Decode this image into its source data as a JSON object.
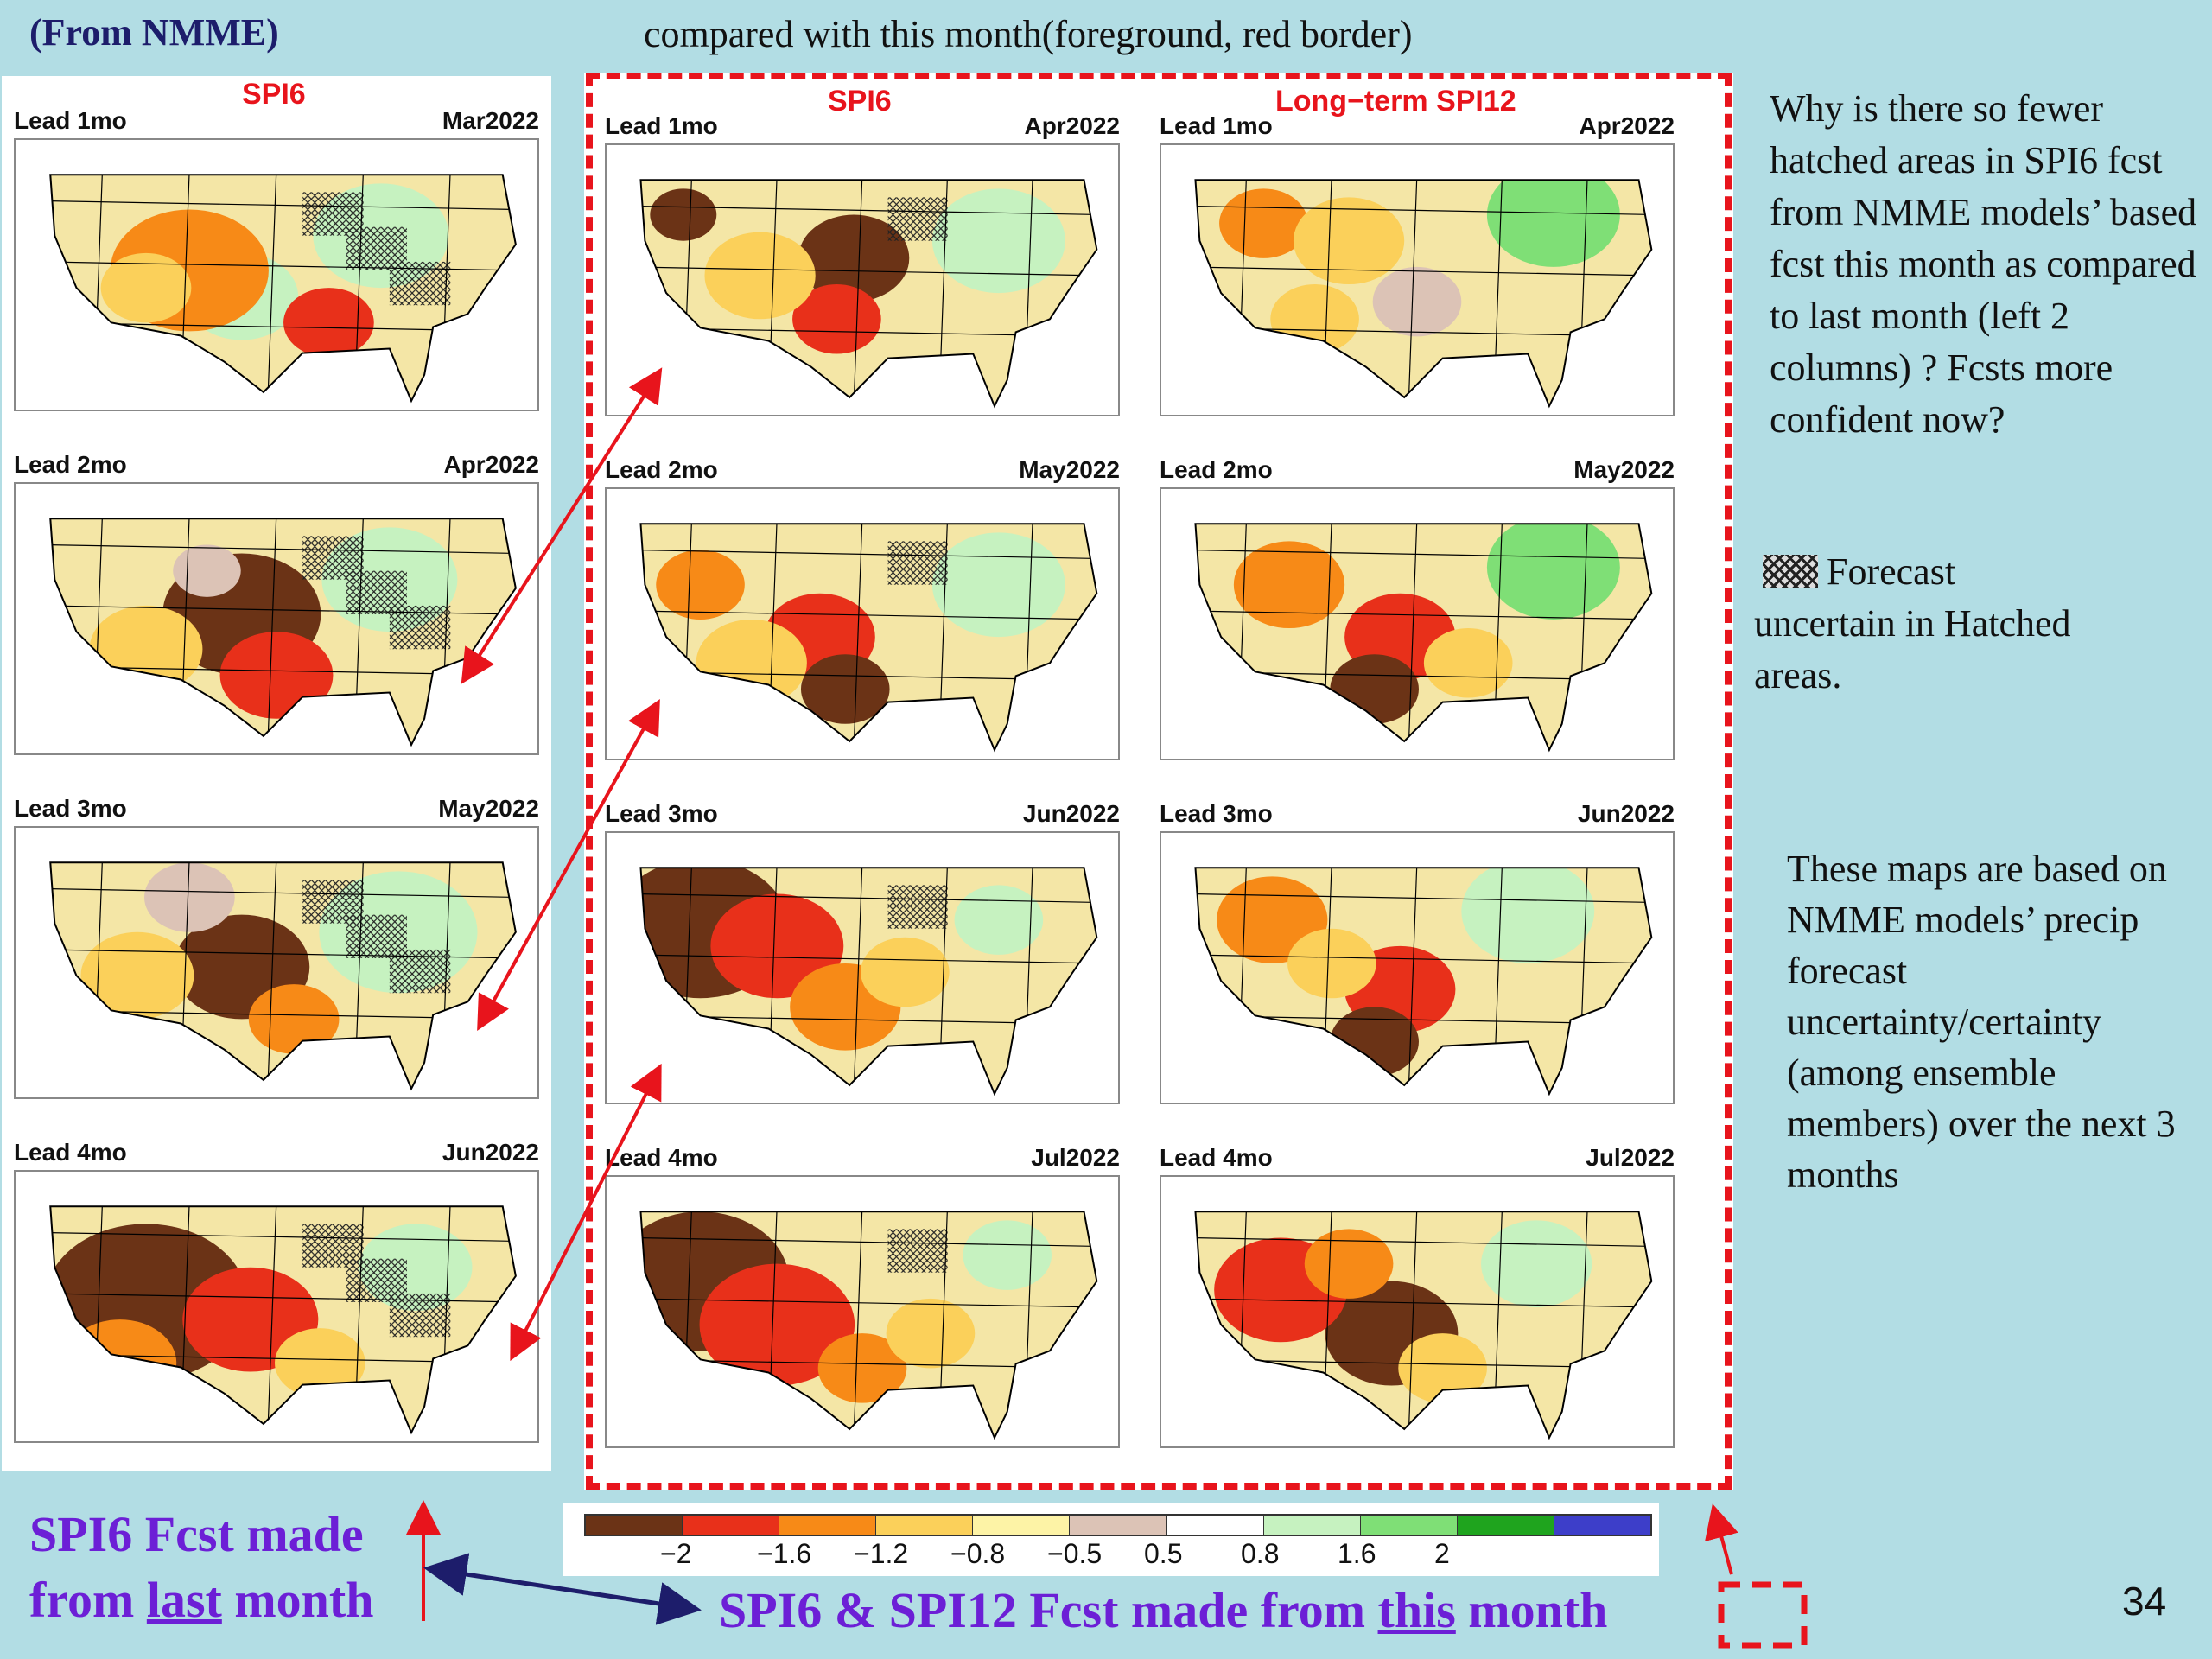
{
  "header": {
    "source_label": "(From NMME)",
    "compare_note": "compared with this month(foreground, red border)"
  },
  "left_column": {
    "title": "SPI6",
    "maps": [
      {
        "lead": "Lead 1mo",
        "date": "Mar2022"
      },
      {
        "lead": "Lead 2mo",
        "date": "Apr2022"
      },
      {
        "lead": "Lead 3mo",
        "date": "May2022"
      },
      {
        "lead": "Lead 4mo",
        "date": "Jun2022"
      }
    ]
  },
  "middle_column": {
    "title": "SPI6",
    "maps": [
      {
        "lead": "Lead 1mo",
        "date": "Apr2022"
      },
      {
        "lead": "Lead 2mo",
        "date": "May2022"
      },
      {
        "lead": "Lead 3mo",
        "date": "Jun2022"
      },
      {
        "lead": "Lead 4mo",
        "date": "Jul2022"
      }
    ]
  },
  "right_column": {
    "title": "Long−term SPI12",
    "maps": [
      {
        "lead": "Lead 1mo",
        "date": "Apr2022"
      },
      {
        "lead": "Lead 2mo",
        "date": "May2022"
      },
      {
        "lead": "Lead 3mo",
        "date": "Jun2022"
      },
      {
        "lead": "Lead 4mo",
        "date": "Jul2022"
      }
    ]
  },
  "notes": {
    "question": "Why is there so fewer hatched areas in SPI6 fcst from NMME models’ based fcst this month as compared to last month (left 2 columns) ? Fcsts more confident now?",
    "hatch_label": "Forecast uncertain in Hatched areas.",
    "maps_basis": "These maps are based on NMME models’ precip forecast uncertainty/certainty (among ensemble members) over the next 3 months"
  },
  "legend": {
    "colors": [
      "#6b3316",
      "#e8301a",
      "#f78a17",
      "#fbd05a",
      "#fdf3a6",
      "#dcc3b6",
      "#ffffff",
      "#c6f2c0",
      "#7fdf76",
      "#1fa41e",
      "#3d3ec9"
    ],
    "ticks": [
      "−2",
      "−1.6",
      "−1.2",
      "−0.8",
      "−0.5",
      "0.5",
      "0.8",
      "1.6",
      "2"
    ]
  },
  "footer": {
    "last_month_line1": "SPI6 Fcst made",
    "last_month_from": "from ",
    "last_month_word": "last",
    "last_month_rest": " month",
    "this_month_prefix": "SPI6  & SPI12 Fcst made from ",
    "this_month_word": "this",
    "this_month_suffix": " month",
    "page_number": "34"
  },
  "arrow_color": "#e8141c",
  "navy_arrow_color": "#1d1d6b"
}
